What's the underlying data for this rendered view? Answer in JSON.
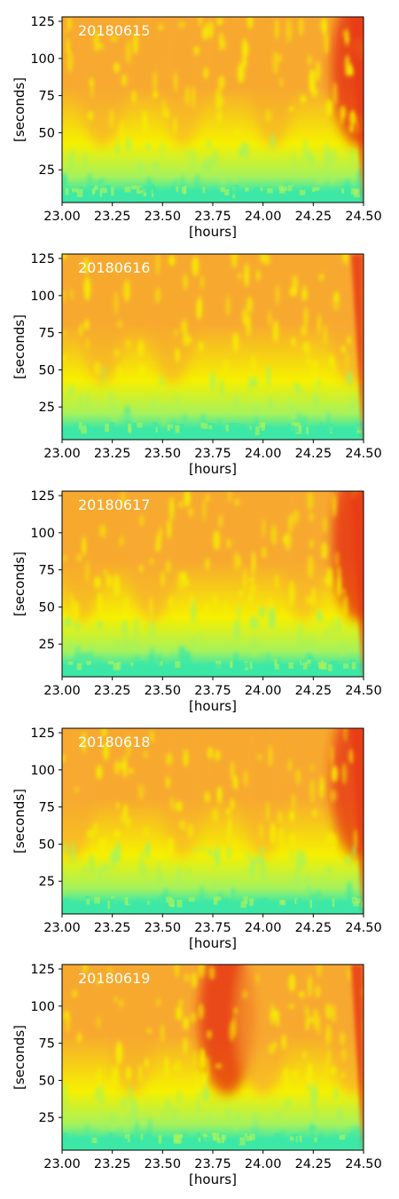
{
  "colors": {
    "low": "#3de8a6",
    "low_mid": "#a6f25c",
    "mid": "#f6f000",
    "high_mid": "#f7a92f",
    "high": "#e4260f",
    "edge": "#e83a14"
  },
  "chart_data": [
    {
      "type": "heatmap",
      "title": "20180615",
      "xlabel": "[hours]",
      "ylabel": "[seconds]",
      "xlim": [
        23.0,
        24.5
      ],
      "ylim": [
        3,
        128
      ],
      "xticks": [
        "23.00",
        "23.25",
        "23.50",
        "23.75",
        "24.00",
        "24.25",
        "24.50"
      ],
      "yticks": [
        "25",
        "50",
        "75",
        "100",
        "125"
      ],
      "x_tick_values": [
        23.0,
        23.25,
        23.5,
        23.75,
        24.0,
        24.25,
        24.5
      ],
      "y_tick_values": [
        25,
        50,
        75,
        100,
        125
      ],
      "grid": false,
      "warm_regions": [
        [
          23.2,
          0.7
        ],
        [
          23.6,
          0.5
        ],
        [
          24.05,
          0.6
        ],
        [
          24.48,
          1.0
        ]
      ]
    },
    {
      "type": "heatmap",
      "title": "20180616",
      "xlabel": "[hours]",
      "ylabel": "[seconds]",
      "xlim": [
        23.0,
        24.5
      ],
      "ylim": [
        3,
        128
      ],
      "xticks": [
        "23.00",
        "23.25",
        "23.50",
        "23.75",
        "24.00",
        "24.25",
        "24.50"
      ],
      "yticks": [
        "25",
        "50",
        "75",
        "100",
        "125"
      ],
      "x_tick_values": [
        23.0,
        23.25,
        23.5,
        23.75,
        24.0,
        24.25,
        24.5
      ],
      "y_tick_values": [
        25,
        50,
        75,
        100,
        125
      ],
      "grid": false,
      "warm_regions": [
        [
          23.2,
          0.6
        ],
        [
          23.55,
          0.6
        ],
        [
          24.45,
          0.8
        ]
      ]
    },
    {
      "type": "heatmap",
      "title": "20180617",
      "xlabel": "[hours]",
      "ylabel": "[seconds]",
      "xlim": [
        23.0,
        24.5
      ],
      "ylim": [
        3,
        128
      ],
      "xticks": [
        "23.00",
        "23.25",
        "23.50",
        "23.75",
        "24.00",
        "24.25",
        "24.50"
      ],
      "yticks": [
        "25",
        "50",
        "75",
        "100",
        "125"
      ],
      "x_tick_values": [
        23.0,
        23.25,
        23.5,
        23.75,
        24.0,
        24.25,
        24.5
      ],
      "y_tick_values": [
        25,
        50,
        75,
        100,
        125
      ],
      "grid": false,
      "warm_regions": [
        [
          23.1,
          0.6
        ],
        [
          23.45,
          0.7
        ],
        [
          24.2,
          0.5
        ],
        [
          24.48,
          1.0
        ]
      ]
    },
    {
      "type": "heatmap",
      "title": "20180618",
      "xlabel": "[hours]",
      "ylabel": "[seconds]",
      "xlim": [
        23.0,
        24.5
      ],
      "ylim": [
        3,
        128
      ],
      "xticks": [
        "23.00",
        "23.25",
        "23.50",
        "23.75",
        "24.00",
        "24.25",
        "24.50"
      ],
      "yticks": [
        "25",
        "50",
        "75",
        "100",
        "125"
      ],
      "x_tick_values": [
        23.0,
        23.25,
        23.5,
        23.75,
        24.0,
        24.25,
        24.5
      ],
      "y_tick_values": [
        25,
        50,
        75,
        100,
        125
      ],
      "grid": false,
      "warm_regions": [
        [
          23.05,
          0.7
        ],
        [
          23.6,
          0.5
        ],
        [
          24.0,
          0.5
        ],
        [
          24.47,
          0.9
        ]
      ]
    },
    {
      "type": "heatmap",
      "title": "20180619",
      "xlabel": "[hours]",
      "ylabel": "[seconds]",
      "xlim": [
        23.0,
        24.5
      ],
      "ylim": [
        3,
        128
      ],
      "xticks": [
        "23.00",
        "23.25",
        "23.50",
        "23.75",
        "24.00",
        "24.25",
        "24.50"
      ],
      "yticks": [
        "25",
        "50",
        "75",
        "100",
        "125"
      ],
      "x_tick_values": [
        23.0,
        23.25,
        23.5,
        23.75,
        24.0,
        24.25,
        24.5
      ],
      "y_tick_values": [
        25,
        50,
        75,
        100,
        125
      ],
      "grid": false,
      "warm_regions": [
        [
          23.35,
          0.6
        ],
        [
          23.82,
          1.0
        ],
        [
          24.0,
          0.8
        ],
        [
          24.45,
          0.8
        ]
      ]
    }
  ]
}
